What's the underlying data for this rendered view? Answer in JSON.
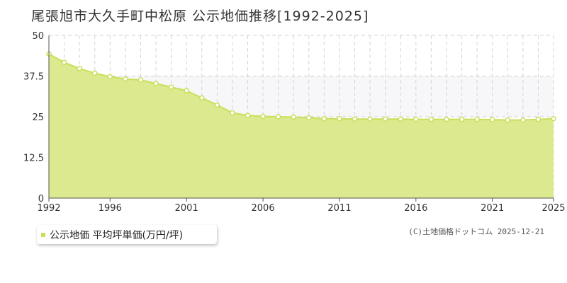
{
  "header": {
    "title": "尾張旭市大久手町中松原 公示地価推移[1992-2025]"
  },
  "legend": {
    "label": "公示地価 平均坪単価(万円/坪)"
  },
  "credit": "(C)土地価格ドットコム 2025-12-21",
  "colors": {
    "fill": "#dce98e",
    "line": "#c8e05a",
    "upper_band": "#f7f7f9",
    "point_fill": "#ffffff",
    "point_stroke": "#c8e05a"
  },
  "chart_data": {
    "type": "area",
    "title": "尾張旭市大久手町中松原 公示地価推移[1992-2025]",
    "xlabel": "",
    "ylabel": "",
    "x": [
      1992,
      1993,
      1994,
      1995,
      1996,
      1997,
      1998,
      1999,
      2000,
      2001,
      2002,
      2003,
      2004,
      2005,
      2006,
      2007,
      2008,
      2009,
      2010,
      2011,
      2012,
      2013,
      2014,
      2015,
      2016,
      2017,
      2018,
      2019,
      2020,
      2021,
      2022,
      2023,
      2024,
      2025
    ],
    "series": [
      {
        "name": "公示地価 平均坪単価(万円/坪)",
        "values": [
          44.3,
          41.7,
          39.8,
          38.4,
          37.3,
          36.6,
          36.3,
          35.2,
          34.1,
          33.0,
          30.8,
          28.6,
          26.2,
          25.4,
          25.1,
          25.0,
          24.9,
          24.7,
          24.4,
          24.4,
          24.3,
          24.3,
          24.3,
          24.3,
          24.2,
          24.2,
          24.2,
          24.2,
          24.2,
          24.1,
          24.0,
          24.0,
          24.2,
          24.4
        ]
      }
    ],
    "ylim": [
      0,
      50
    ],
    "yticks": [
      "0",
      "12.5",
      "25",
      "37.5",
      "50"
    ],
    "ytick_values": [
      0,
      12.5,
      25,
      37.5,
      50
    ],
    "xtick_labels": [
      "1992",
      "1996",
      "2001",
      "2006",
      "2011",
      "2016",
      "2021",
      "2025"
    ],
    "xtick_values": [
      1992,
      1996,
      2001,
      2006,
      2011,
      2016,
      2021,
      2025
    ],
    "grid": true,
    "legend_position": "bottom-left"
  }
}
